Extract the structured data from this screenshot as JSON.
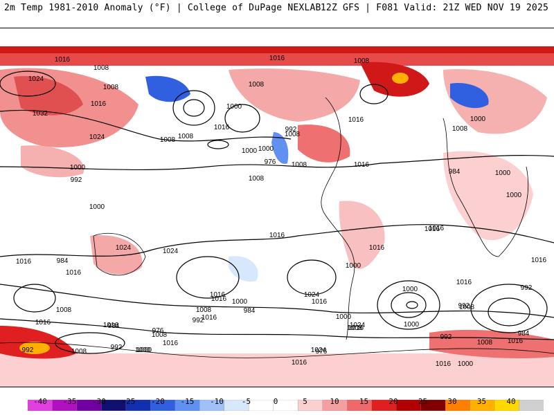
{
  "header": {
    "title_left": "2m Temp 1981-2010 Anomaly (°F) | College of DuPage NEXLAB",
    "title_right": "12Z GFS | F081 Valid: 21Z WED NOV 19 2025"
  },
  "colorbar": {
    "ticks": [
      "-40",
      "-35",
      "-30",
      "-25",
      "-20",
      "-15",
      "-10",
      "-5",
      "0",
      "5",
      "10",
      "15",
      "20",
      "25",
      "30",
      "35",
      "40"
    ],
    "colors": [
      "#e040e0",
      "#b010c0",
      "#7000a0",
      "#101070",
      "#1030b0",
      "#3060e0",
      "#6090f0",
      "#a0c0f8",
      "#d8e8fc",
      "#ffffff",
      "#ffffff",
      "#fcd0d0",
      "#f5a0a0",
      "#ee6a6a",
      "#e02020",
      "#b00000",
      "#800000",
      "#ff8000",
      "#ffb000",
      "#ffd800",
      "#d0d0d0"
    ]
  },
  "isobars": [
    {
      "label": "1016",
      "value": 1016
    },
    {
      "label": "1008",
      "value": 1008
    },
    {
      "label": "1008",
      "value": 1008
    },
    {
      "label": "1016",
      "value": 1016
    },
    {
      "label": "1032",
      "value": 1032
    },
    {
      "label": "1024",
      "value": 1024
    },
    {
      "label": "1024",
      "value": 1024
    },
    {
      "label": "1016",
      "value": 1016
    },
    {
      "label": "1008",
      "value": 1008
    },
    {
      "label": "1008",
      "value": 1008
    },
    {
      "label": "1016",
      "value": 1016
    },
    {
      "label": "1016",
      "value": 1016
    },
    {
      "label": "1008",
      "value": 1008
    },
    {
      "label": "1000",
      "value": 1000
    },
    {
      "label": "1008",
      "value": 1008
    },
    {
      "label": "1000",
      "value": 1000
    },
    {
      "label": "1008",
      "value": 1008
    },
    {
      "label": "1000",
      "value": 1000
    },
    {
      "label": "1016",
      "value": 1016
    },
    {
      "label": "1008",
      "value": 1008
    },
    {
      "label": "1000",
      "value": 1000
    },
    {
      "label": "992",
      "value": 992
    },
    {
      "label": "1000",
      "value": 1000
    },
    {
      "label": "984",
      "value": 984
    },
    {
      "label": "1016",
      "value": 1016
    },
    {
      "label": "1024",
      "value": 1024
    },
    {
      "label": "1016",
      "value": 1016
    },
    {
      "label": "1016",
      "value": 1016
    },
    {
      "label": "1024",
      "value": 1024
    },
    {
      "label": "1016",
      "value": 1016
    },
    {
      "label": "984",
      "value": 984
    },
    {
      "label": "1008",
      "value": 1008
    },
    {
      "label": "992",
      "value": 992
    },
    {
      "label": "1000",
      "value": 1000
    },
    {
      "label": "1016",
      "value": 1016
    },
    {
      "label": "1024",
      "value": 1024
    },
    {
      "label": "1016",
      "value": 1016
    },
    {
      "label": "1016",
      "value": 1016
    },
    {
      "label": "1016",
      "value": 1016
    },
    {
      "label": "1016",
      "value": 1016
    },
    {
      "label": "1016",
      "value": 1016
    },
    {
      "label": "1008",
      "value": 1008
    },
    {
      "label": "1016",
      "value": 1016
    },
    {
      "label": "1016",
      "value": 1016
    },
    {
      "label": "1008",
      "value": 1008
    },
    {
      "label": "1016",
      "value": 1016
    },
    {
      "label": "1016",
      "value": 1016
    },
    {
      "label": "1024",
      "value": 1024
    },
    {
      "label": "1008",
      "value": 1008
    },
    {
      "label": "1000",
      "value": 1000
    },
    {
      "label": "992",
      "value": 992
    },
    {
      "label": "1000",
      "value": 1000
    },
    {
      "label": "992",
      "value": 992
    },
    {
      "label": "1016",
      "value": 1016
    },
    {
      "label": "1008",
      "value": 1008
    },
    {
      "label": "1008",
      "value": 1008
    },
    {
      "label": "992",
      "value": 992
    },
    {
      "label": "1000",
      "value": 1000
    },
    {
      "label": "992",
      "value": 992
    },
    {
      "label": "1008",
      "value": 1008
    },
    {
      "label": "984",
      "value": 984
    },
    {
      "label": "976",
      "value": 976
    },
    {
      "label": "1000",
      "value": 1000
    },
    {
      "label": "1024",
      "value": 1024
    },
    {
      "label": "1016",
      "value": 1016
    },
    {
      "label": "1016",
      "value": 1016
    },
    {
      "label": "1016",
      "value": 1016
    },
    {
      "label": "1000",
      "value": 1000
    },
    {
      "label": "1008",
      "value": 1008
    },
    {
      "label": "1000",
      "value": 1000
    },
    {
      "label": "1000",
      "value": 1000
    },
    {
      "label": "984",
      "value": 984
    },
    {
      "label": "976",
      "value": 976
    },
    {
      "label": "992",
      "value": 992
    },
    {
      "label": "1008",
      "value": 1008
    },
    {
      "label": "992",
      "value": 992
    },
    {
      "label": "976",
      "value": 976
    },
    {
      "label": "984",
      "value": 984
    },
    {
      "label": "1000",
      "value": 1000
    },
    {
      "label": "1016",
      "value": 1016
    },
    {
      "label": "1000",
      "value": 1000
    },
    {
      "label": "1000",
      "value": 1000
    }
  ]
}
